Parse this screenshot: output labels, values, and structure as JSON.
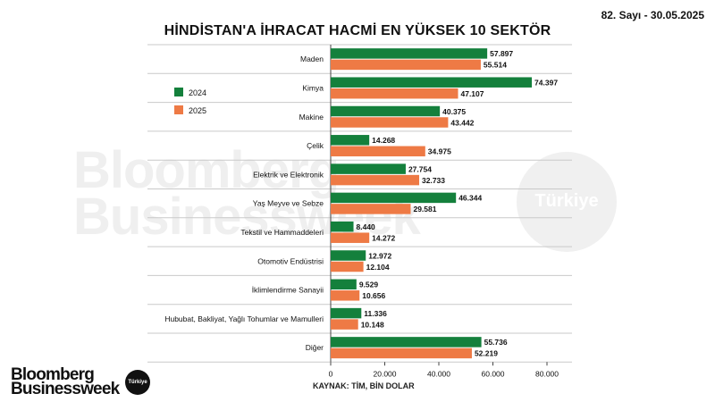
{
  "issue": "82. Sayı - 30.05.2025",
  "title": "HİNDİSTAN'A İHRACAT HACMİ EN YÜKSEK 10 SEKTÖR",
  "source": "KAYNAK: TİM, BİN DOLAR",
  "brand": {
    "line1": "Bloomberg",
    "line2": "Businessweek",
    "badge": "Türkiye"
  },
  "watermark": {
    "line1": "Bloomberg",
    "line2": "Businessweek",
    "circle": "Türkiye"
  },
  "colors": {
    "series_2024": "#14803c",
    "series_2025": "#ee7a45"
  },
  "chart_data": {
    "type": "bar",
    "orientation": "horizontal",
    "categories": [
      "Maden",
      "Kimya",
      "Makine",
      "Çelik",
      "Elektrik ve Elektronik",
      "Yaş Meyve ve Sebze",
      "Tekstil ve Hammaddeleri",
      "Otomotiv Endüstrisi",
      "İklimlendirme Sanayii",
      "Hububat, Bakliyat, Yağlı Tohumlar ve Mamulleri",
      "Diğer"
    ],
    "series": [
      {
        "name": "2024",
        "values": [
          57897,
          74397,
          40375,
          14268,
          27754,
          46344,
          8440,
          12972,
          9529,
          11336,
          55736
        ],
        "labels": [
          "57.897",
          "74.397",
          "40.375",
          "14.268",
          "27.754",
          "46.344",
          "8.440",
          "12.972",
          "9.529",
          "11.336",
          "55.736"
        ]
      },
      {
        "name": "2025",
        "values": [
          55514,
          47107,
          43442,
          34975,
          32733,
          29581,
          14272,
          12104,
          10656,
          10148,
          52219
        ],
        "labels": [
          "55.514",
          "47.107",
          "43.442",
          "34.975",
          "32.733",
          "29.581",
          "14.272",
          "12.104",
          "10.656",
          "10.148",
          "52.219"
        ]
      }
    ],
    "xlim": [
      0,
      80000
    ],
    "xticks": [
      0,
      20000,
      40000,
      60000,
      80000
    ],
    "xtick_labels": [
      "0",
      "20.000",
      "40.000",
      "60.000",
      "80.000"
    ],
    "legend_position": "left",
    "grid": true
  }
}
